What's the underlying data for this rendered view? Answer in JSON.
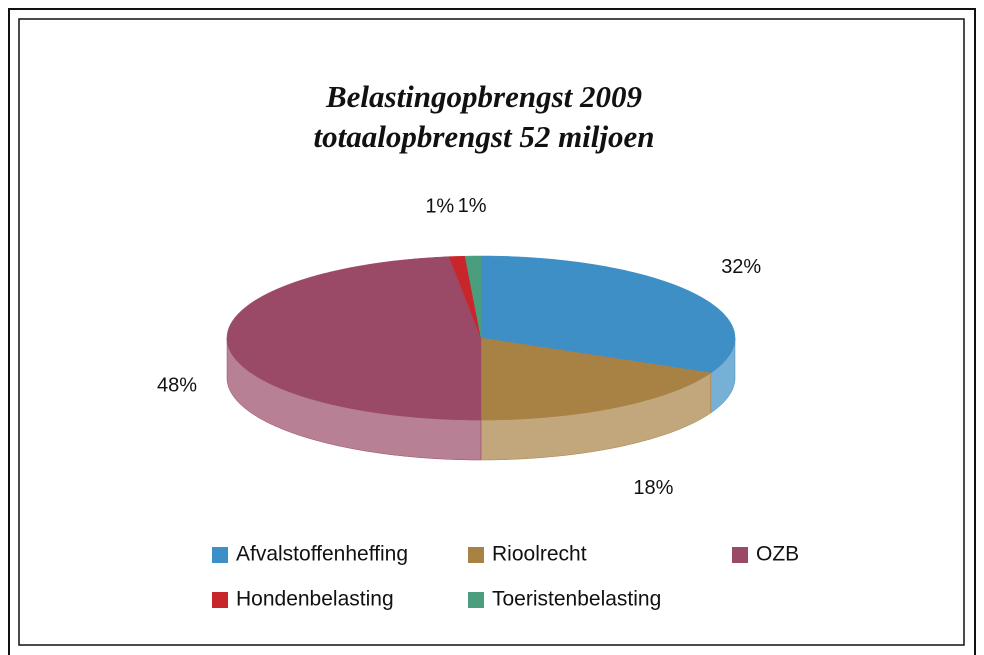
{
  "chart_data": {
    "type": "pie",
    "title": "Belastingopbrengst 2009",
    "subtitle": "totaalopbrengst 52 miljoen",
    "categories": [
      "Afvalstoffenheffing",
      "Rioolrecht",
      "OZB",
      "Hondenbelasting",
      "Toeristenbelasting"
    ],
    "values": [
      32,
      18,
      48,
      1,
      1
    ],
    "value_labels": [
      "32%",
      "18%",
      "48%",
      "1%",
      "1%"
    ],
    "colors": [
      "#3d8fc6",
      "#a88244",
      "#9a4a66",
      "#c8262a",
      "#4a9e7e"
    ],
    "legend": "bottom"
  }
}
